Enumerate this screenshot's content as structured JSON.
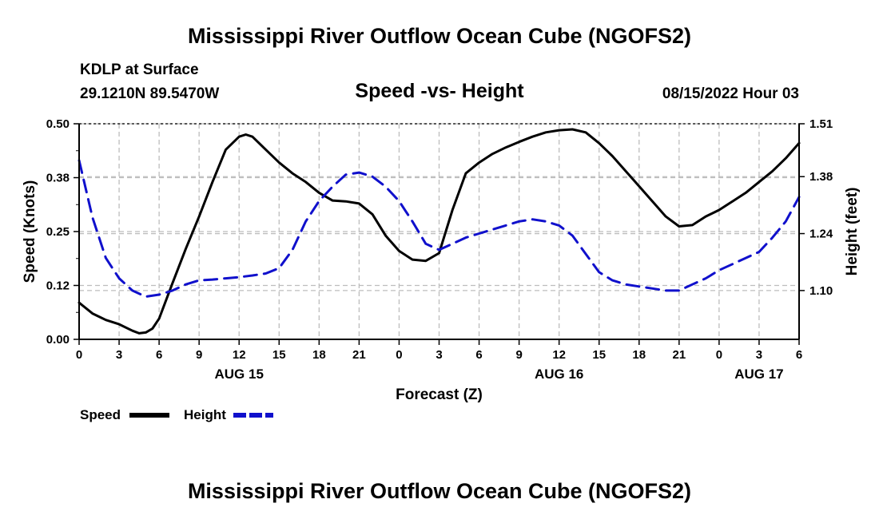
{
  "page": {
    "title": "Mississippi River Outflow Ocean Cube (NGOFS2)",
    "bottom_title": "Mississippi River Outflow Ocean Cube (NGOFS2)",
    "station": "KDLP at Surface",
    "coords": "29.1210N  89.5470W",
    "subtitle": "Speed -vs- Height",
    "datetime": "08/15/2022 Hour 03"
  },
  "legend": [
    {
      "label": "Speed",
      "color": "#000000",
      "style": "solid"
    },
    {
      "label": "Height",
      "color": "#1010cc",
      "style": "dashed"
    }
  ],
  "chart_data": {
    "type": "line",
    "title": "Speed -vs- Height",
    "xlabel": "Forecast (Z)",
    "ylabel": "Speed (Knots)",
    "y2label": "Height (feet)",
    "xlim": [
      0,
      54
    ],
    "ylim": [
      0,
      0.5
    ],
    "y2lim": [
      0.98,
      1.51
    ],
    "x_tick_values": [
      0,
      3,
      6,
      9,
      12,
      15,
      18,
      21,
      24,
      27,
      30,
      33,
      36,
      39,
      42,
      45,
      48,
      51,
      54
    ],
    "x_tick_labels": [
      "0",
      "3",
      "6",
      "9",
      "12",
      "15",
      "18",
      "21",
      "0",
      "3",
      "6",
      "9",
      "12",
      "15",
      "18",
      "21",
      "0",
      "3",
      "6"
    ],
    "date_labels": [
      {
        "x": 12,
        "text": "AUG 15"
      },
      {
        "x": 36,
        "text": "AUG 16"
      },
      {
        "x": 51,
        "text": "AUG 17"
      }
    ],
    "y_tick_values": [
      0,
      0.125,
      0.25,
      0.375,
      0.5
    ],
    "y_tick_labels": [
      "0.00",
      "0.12",
      "0.25",
      "0.38",
      "0.50"
    ],
    "y2_tick_values": [
      1.1,
      1.24,
      1.38,
      1.51
    ],
    "y2_tick_labels": [
      "1.10",
      "1.24",
      "1.38",
      "1.51"
    ],
    "grid": true,
    "series": [
      {
        "name": "Speed",
        "axis": "left",
        "color": "#000000",
        "x": [
          0,
          1,
          2,
          3,
          4,
          4.5,
          5,
          5.5,
          6,
          7,
          8,
          9,
          10,
          11,
          12,
          12.5,
          13,
          14,
          15,
          16,
          17,
          18,
          19,
          20,
          21,
          22,
          23,
          24,
          25,
          26,
          27,
          28,
          29,
          30,
          31,
          32,
          33,
          34,
          35,
          36,
          37,
          38,
          39,
          40,
          41,
          42,
          43,
          44,
          45,
          46,
          47,
          48,
          49,
          50,
          51,
          52,
          53,
          54
        ],
        "values": [
          0.085,
          0.06,
          0.045,
          0.035,
          0.02,
          0.014,
          0.016,
          0.025,
          0.048,
          0.13,
          0.21,
          0.285,
          0.365,
          0.44,
          0.47,
          0.475,
          0.47,
          0.44,
          0.41,
          0.385,
          0.365,
          0.34,
          0.322,
          0.32,
          0.315,
          0.29,
          0.24,
          0.205,
          0.185,
          0.182,
          0.2,
          0.3,
          0.385,
          0.41,
          0.43,
          0.445,
          0.458,
          0.47,
          0.48,
          0.485,
          0.487,
          0.48,
          0.455,
          0.425,
          0.39,
          0.355,
          0.32,
          0.285,
          0.262,
          0.265,
          0.285,
          0.3,
          0.32,
          0.34,
          0.365,
          0.39,
          0.42,
          0.455
        ]
      },
      {
        "name": "Height",
        "axis": "right",
        "color": "#1010cc",
        "x": [
          0,
          1,
          2,
          3,
          4,
          5,
          6,
          7,
          8,
          9,
          10,
          11,
          12,
          13,
          14,
          15,
          16,
          17,
          18,
          19,
          20,
          21,
          22,
          23,
          24,
          25,
          26,
          27,
          28,
          29,
          30,
          31,
          32,
          33,
          34,
          35,
          36,
          37,
          38,
          39,
          40,
          41,
          42,
          43,
          44,
          45,
          46,
          47,
          48,
          49,
          50,
          51,
          52,
          53,
          54
        ],
        "values": [
          1.42,
          1.28,
          1.18,
          1.13,
          1.1,
          1.085,
          1.09,
          1.1,
          1.115,
          1.125,
          1.127,
          1.13,
          1.133,
          1.137,
          1.142,
          1.155,
          1.2,
          1.27,
          1.32,
          1.355,
          1.385,
          1.39,
          1.38,
          1.355,
          1.32,
          1.27,
          1.215,
          1.2,
          1.215,
          1.23,
          1.24,
          1.25,
          1.26,
          1.27,
          1.275,
          1.27,
          1.26,
          1.235,
          1.19,
          1.145,
          1.125,
          1.115,
          1.11,
          1.105,
          1.1,
          1.1,
          1.115,
          1.13,
          1.15,
          1.165,
          1.18,
          1.195,
          1.23,
          1.27,
          1.33
        ]
      }
    ]
  }
}
